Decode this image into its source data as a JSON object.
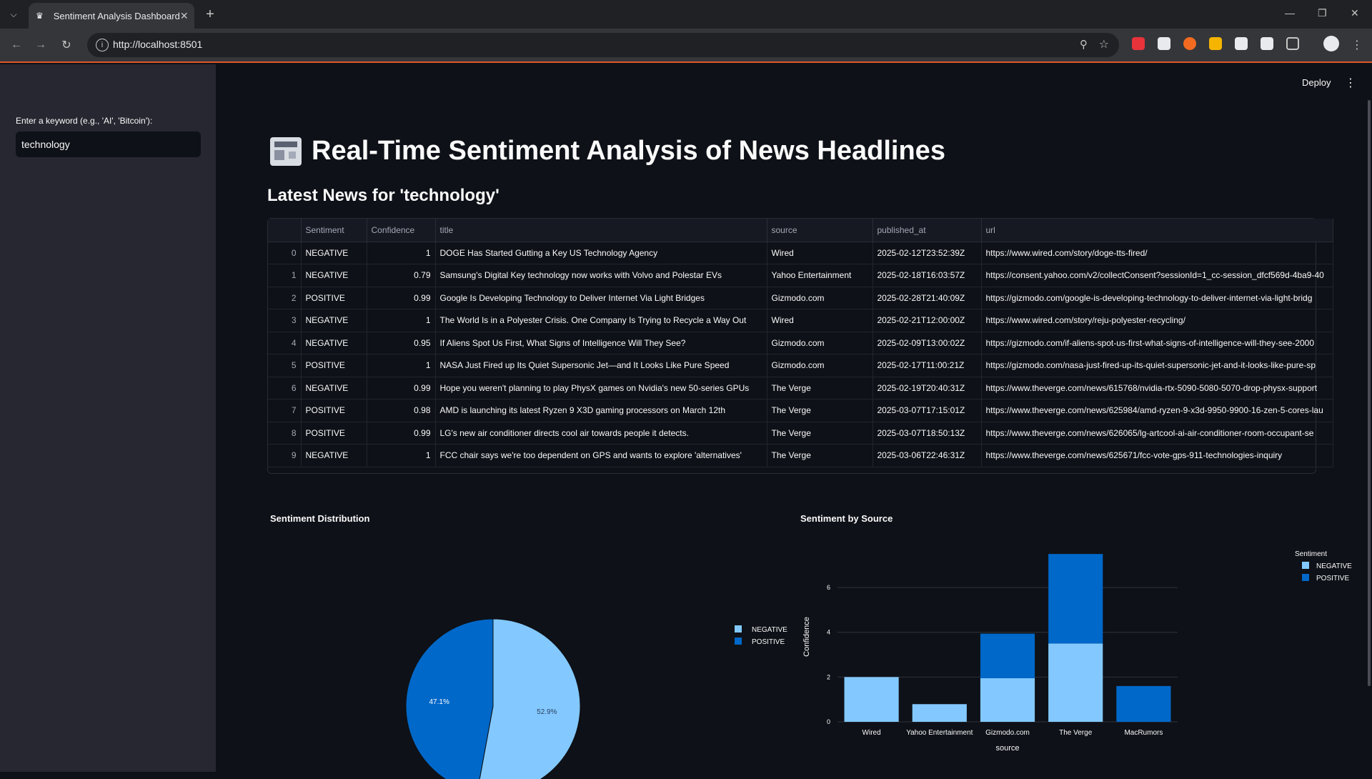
{
  "browser": {
    "tab_title": "Sentiment Analysis Dashboard",
    "url": "http://localhost:8501"
  },
  "app": {
    "deploy_label": "Deploy",
    "sidebar": {
      "keyword_label": "Enter a keyword (e.g., 'AI', 'Bitcoin'):",
      "keyword_value": "technology"
    },
    "title": "Real-Time Sentiment Analysis of News Headlines",
    "subheader": "Latest News for 'technology'"
  },
  "table": {
    "columns": [
      "",
      "Sentiment",
      "Confidence",
      "title",
      "source",
      "published_at",
      "url"
    ],
    "rows": [
      [
        "0",
        "NEGATIVE",
        "1",
        "DOGE Has Started Gutting a Key US Technology Agency",
        "Wired",
        "2025-02-12T23:52:39Z",
        "https://www.wired.com/story/doge-tts-fired/"
      ],
      [
        "1",
        "NEGATIVE",
        "0.79",
        "Samsung's Digital Key technology now works with Volvo and Polestar EVs",
        "Yahoo Entertainment",
        "2025-02-18T16:03:57Z",
        "https://consent.yahoo.com/v2/collectConsent?sessionId=1_cc-session_dfcf569d-4ba9-40"
      ],
      [
        "2",
        "POSITIVE",
        "0.99",
        "Google Is Developing Technology to Deliver Internet Via Light Bridges",
        "Gizmodo.com",
        "2025-02-28T21:40:09Z",
        "https://gizmodo.com/google-is-developing-technology-to-deliver-internet-via-light-bridg"
      ],
      [
        "3",
        "NEGATIVE",
        "1",
        "The World Is in a Polyester Crisis. One Company Is Trying to Recycle a Way Out",
        "Wired",
        "2025-02-21T12:00:00Z",
        "https://www.wired.com/story/reju-polyester-recycling/"
      ],
      [
        "4",
        "NEGATIVE",
        "0.95",
        "If Aliens Spot Us First, What Signs of Intelligence Will They See?",
        "Gizmodo.com",
        "2025-02-09T13:00:02Z",
        "https://gizmodo.com/if-aliens-spot-us-first-what-signs-of-intelligence-will-they-see-2000"
      ],
      [
        "5",
        "POSITIVE",
        "1",
        "NASA Just Fired up Its Quiet Supersonic Jet—and It Looks Like Pure Speed",
        "Gizmodo.com",
        "2025-02-17T11:00:21Z",
        "https://gizmodo.com/nasa-just-fired-up-its-quiet-supersonic-jet-and-it-looks-like-pure-sp"
      ],
      [
        "6",
        "NEGATIVE",
        "0.99",
        "Hope you weren't planning to play PhysX games on Nvidia's new 50-series GPUs",
        "The Verge",
        "2025-02-19T20:40:31Z",
        "https://www.theverge.com/news/615768/nvidia-rtx-5090-5080-5070-drop-physx-support"
      ],
      [
        "7",
        "POSITIVE",
        "0.98",
        "AMD is launching its latest Ryzen 9 X3D gaming processors on March 12th",
        "The Verge",
        "2025-03-07T17:15:01Z",
        "https://www.theverge.com/news/625984/amd-ryzen-9-x3d-9950-9900-16-zen-5-cores-lau"
      ],
      [
        "8",
        "POSITIVE",
        "0.99",
        "LG's new air conditioner directs cool air towards people it detects.",
        "The Verge",
        "2025-03-07T18:50:13Z",
        "https://www.theverge.com/news/626065/lg-artcool-ai-air-conditioner-room-occupant-se"
      ],
      [
        "9",
        "NEGATIVE",
        "1",
        "FCC chair says we're too dependent on GPS and wants to explore 'alternatives'",
        "The Verge",
        "2025-03-06T22:46:31Z",
        "https://www.theverge.com/news/625671/fcc-vote-gps-911-technologies-inquiry"
      ]
    ]
  },
  "colors": {
    "negative": "#83c9ff",
    "positive": "#0068c9",
    "accent": "#e0572a"
  },
  "chart_data": [
    {
      "type": "pie",
      "title": "Sentiment Distribution",
      "labels": [
        "NEGATIVE",
        "POSITIVE"
      ],
      "values": [
        52.9,
        47.1
      ],
      "slice_labels": [
        "52.9%",
        "47.1%"
      ],
      "legend": {
        "placement": "top-right",
        "entries": [
          "NEGATIVE",
          "POSITIVE"
        ]
      }
    },
    {
      "type": "bar",
      "stacked": true,
      "title": "Sentiment by Source",
      "xlabel": "source",
      "ylabel": "Confidence",
      "categories": [
        "Wired",
        "Yahoo Entertainment",
        "Gizmodo.com",
        "The Verge",
        "MacRumors"
      ],
      "series": [
        {
          "name": "NEGATIVE",
          "values": [
            2.0,
            0.79,
            1.95,
            3.5,
            0
          ]
        },
        {
          "name": "POSITIVE",
          "values": [
            0,
            0,
            1.99,
            4.0,
            1.6
          ]
        }
      ],
      "ylim": [
        0,
        7.6
      ],
      "yticks": [
        "0",
        "2",
        "4",
        "6"
      ],
      "grid": true,
      "legend": {
        "title": "Sentiment",
        "placement": "top-right",
        "entries": [
          "NEGATIVE",
          "POSITIVE"
        ]
      }
    }
  ]
}
